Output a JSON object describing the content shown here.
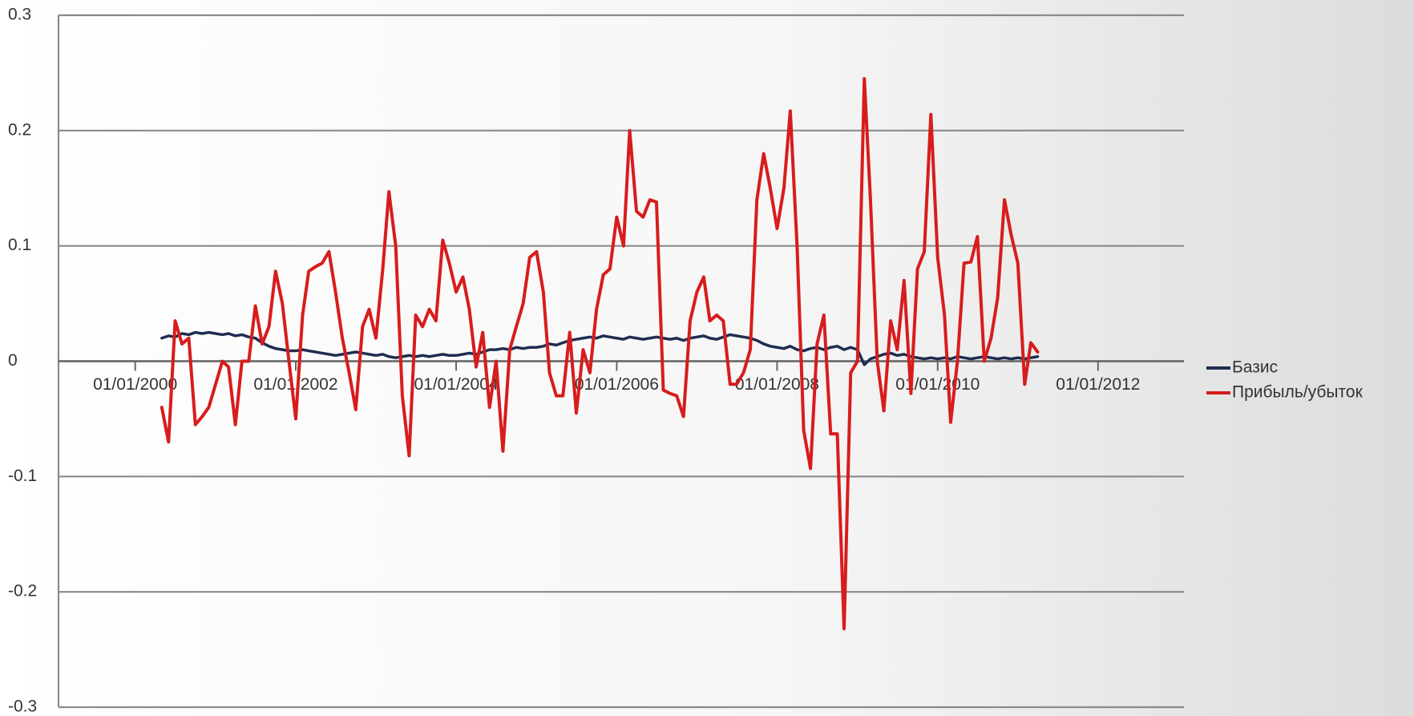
{
  "chart_data": {
    "type": "line",
    "x": [
      "01/05/2000",
      "01/06/2000",
      "01/07/2000",
      "01/08/2000",
      "01/09/2000",
      "01/10/2000",
      "01/11/2000",
      "01/12/2000",
      "01/01/2001",
      "01/02/2001",
      "01/03/2001",
      "01/04/2001",
      "01/05/2001",
      "01/06/2001",
      "01/07/2001",
      "01/08/2001",
      "01/09/2001",
      "01/10/2001",
      "01/11/2001",
      "01/12/2001",
      "01/01/2002",
      "01/02/2002",
      "01/03/2002",
      "01/04/2002",
      "01/05/2002",
      "01/06/2002",
      "01/07/2002",
      "01/08/2002",
      "01/09/2002",
      "01/10/2002",
      "01/11/2002",
      "01/12/2002",
      "01/01/2003",
      "01/02/2003",
      "01/03/2003",
      "01/04/2003",
      "01/05/2003",
      "01/06/2003",
      "01/07/2003",
      "01/08/2003",
      "01/09/2003",
      "01/10/2003",
      "01/11/2003",
      "01/12/2003",
      "01/01/2004",
      "01/02/2004",
      "01/03/2004",
      "01/04/2004",
      "01/05/2004",
      "01/06/2004",
      "01/07/2004",
      "01/08/2004",
      "01/09/2004",
      "01/10/2004",
      "01/11/2004",
      "01/12/2004",
      "01/01/2005",
      "01/02/2005",
      "01/03/2005",
      "01/04/2005",
      "01/05/2005",
      "01/06/2005",
      "01/07/2005",
      "01/08/2005",
      "01/09/2005",
      "01/10/2005",
      "01/11/2005",
      "01/12/2005",
      "01/01/2006",
      "01/02/2006",
      "01/03/2006",
      "01/04/2006",
      "01/05/2006",
      "01/06/2006",
      "01/07/2006",
      "01/08/2006",
      "01/09/2006",
      "01/10/2006",
      "01/11/2006",
      "01/12/2006",
      "01/01/2007",
      "01/02/2007",
      "01/03/2007",
      "01/04/2007",
      "01/05/2007",
      "01/06/2007",
      "01/07/2007",
      "01/08/2007",
      "01/09/2007",
      "01/10/2007",
      "01/11/2007",
      "01/12/2007",
      "01/01/2008",
      "01/02/2008",
      "01/03/2008",
      "01/04/2008",
      "01/05/2008",
      "01/06/2008",
      "01/07/2008",
      "01/08/2008",
      "01/09/2008",
      "01/10/2008",
      "01/11/2008",
      "01/12/2008",
      "01/01/2009",
      "01/02/2009",
      "01/03/2009",
      "01/04/2009",
      "01/05/2009",
      "01/06/2009",
      "01/07/2009",
      "01/08/2009",
      "01/09/2009",
      "01/10/2009",
      "01/11/2009",
      "01/12/2009",
      "01/01/2010",
      "01/02/2010",
      "01/03/2010",
      "01/04/2010",
      "01/05/2010",
      "01/06/2010",
      "01/07/2010",
      "01/08/2010",
      "01/09/2010",
      "01/10/2010",
      "01/11/2010",
      "01/12/2010",
      "01/01/2011",
      "01/02/2011",
      "01/03/2011",
      "01/04/2011"
    ],
    "series": [
      {
        "name": "Базис",
        "color": "#1f2d50",
        "values": [
          0.02,
          0.022,
          0.021,
          0.024,
          0.023,
          0.025,
          0.024,
          0.025,
          0.024,
          0.023,
          0.024,
          0.022,
          0.023,
          0.021,
          0.02,
          0.016,
          0.013,
          0.011,
          0.01,
          0.009,
          0.009,
          0.01,
          0.009,
          0.008,
          0.007,
          0.006,
          0.005,
          0.006,
          0.007,
          0.008,
          0.007,
          0.006,
          0.005,
          0.006,
          0.004,
          0.003,
          0.004,
          0.005,
          0.004,
          0.005,
          0.004,
          0.005,
          0.006,
          0.005,
          0.005,
          0.006,
          0.007,
          0.006,
          0.008,
          0.01,
          0.01,
          0.011,
          0.01,
          0.012,
          0.011,
          0.012,
          0.012,
          0.013,
          0.015,
          0.014,
          0.016,
          0.018,
          0.019,
          0.02,
          0.021,
          0.02,
          0.022,
          0.021,
          0.02,
          0.019,
          0.021,
          0.02,
          0.019,
          0.02,
          0.021,
          0.02,
          0.019,
          0.02,
          0.018,
          0.02,
          0.021,
          0.022,
          0.02,
          0.019,
          0.021,
          0.023,
          0.022,
          0.021,
          0.02,
          0.018,
          0.015,
          0.013,
          0.012,
          0.011,
          0.013,
          0.01,
          0.009,
          0.011,
          0.012,
          0.01,
          0.012,
          0.013,
          0.01,
          0.012,
          0.01,
          -0.003,
          0.002,
          0.004,
          0.006,
          0.007,
          0.005,
          0.006,
          0.004,
          0.003,
          0.002,
          0.003,
          0.002,
          0.003,
          0.002,
          0.004,
          0.003,
          0.002,
          0.003,
          0.004,
          0.003,
          0.002,
          0.003,
          0.002,
          0.003,
          0.002,
          0.003,
          0.004
        ]
      },
      {
        "name": "Прибыль/убыток",
        "color": "#d81c1c",
        "values": [
          -0.04,
          -0.07,
          0.035,
          0.015,
          0.02,
          -0.055,
          -0.048,
          -0.04,
          -0.02,
          0,
          -0.005,
          -0.055,
          0,
          0,
          0.048,
          0.015,
          0.03,
          0.078,
          0.05,
          0,
          -0.05,
          0.04,
          0.078,
          0.082,
          0.085,
          0.095,
          0.06,
          0.02,
          -0.01,
          -0.042,
          0.03,
          0.045,
          0.02,
          0.08,
          0.147,
          0.1,
          -0.03,
          -0.082,
          0.04,
          0.03,
          0.045,
          0.035,
          0.105,
          0.085,
          0.06,
          0.073,
          0.045,
          -0.005,
          0.025,
          -0.04,
          0,
          -0.078,
          0.01,
          0.03,
          0.05,
          0.09,
          0.095,
          0.06,
          -0.01,
          -0.03,
          -0.03,
          0.025,
          -0.045,
          0.01,
          -0.01,
          0.045,
          0.075,
          0.08,
          0.125,
          0.1,
          0.2,
          0.13,
          0.125,
          0.14,
          0.138,
          -0.025,
          -0.028,
          -0.03,
          -0.048,
          0.035,
          0.06,
          0.073,
          0.035,
          0.04,
          0.035,
          -0.02,
          -0.02,
          -0.01,
          0.01,
          0.14,
          0.18,
          0.15,
          0.115,
          0.15,
          0.217,
          0.1,
          -0.06,
          -0.093,
          0.015,
          0.04,
          -0.063,
          -0.063,
          -0.232,
          -0.01,
          0,
          0.245,
          0.14,
          0,
          -0.043,
          0.035,
          0.01,
          0.07,
          -0.028,
          0.08,
          0.095,
          0.214,
          0.09,
          0.04,
          -0.053,
          0,
          0.085,
          0.086,
          0.108,
          0,
          0.02,
          0.055,
          0.14,
          0.11,
          0.085,
          -0.02,
          0.016,
          0.008
        ]
      }
    ],
    "xlim": [
      "17/01/1999",
      "26/01/2013"
    ],
    "xticks": [
      "01/01/2000",
      "01/01/2002",
      "01/01/2004",
      "01/01/2006",
      "01/01/2008",
      "01/01/2010",
      "01/01/2012"
    ],
    "ylim": [
      -0.3,
      0.3
    ],
    "yticks": [
      -0.3,
      -0.2,
      -0.1,
      0,
      0.1,
      0.2,
      0.3
    ],
    "grid": true,
    "legend": "right"
  }
}
